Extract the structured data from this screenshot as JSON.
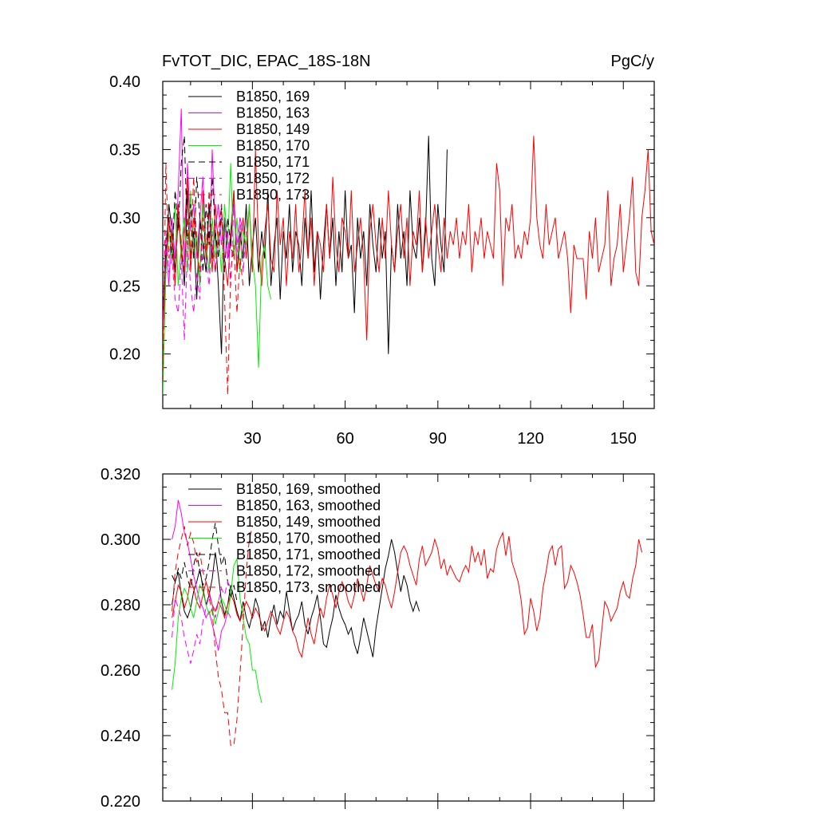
{
  "chart_data": [
    {
      "type": "line",
      "title": "FvTOT_DIC, EPAC_18S-18N",
      "units": "PgC/y",
      "xlim": [
        1,
        160
      ],
      "ylim": [
        0.16,
        0.4
      ],
      "xticks": [
        30,
        60,
        90,
        120,
        150
      ],
      "xtick_labels": [
        "30",
        "60",
        "90",
        "120",
        "150"
      ],
      "yticks": [
        0.2,
        0.25,
        0.3,
        0.35,
        0.4
      ],
      "ytick_labels": [
        "0.20",
        "0.25",
        "0.30",
        "0.35",
        "0.40"
      ],
      "legend_position": "top-left",
      "series": [
        {
          "name": "B1850, 169",
          "color": "#000000",
          "dash": "solid",
          "start": 1,
          "values": [
            0.22,
            0.27,
            0.31,
            0.29,
            0.26,
            0.3,
            0.28,
            0.25,
            0.32,
            0.27,
            0.29,
            0.24,
            0.3,
            0.28,
            0.26,
            0.31,
            0.27,
            0.29,
            0.25,
            0.2,
            0.3,
            0.27,
            0.28,
            0.32,
            0.26,
            0.29,
            0.27,
            0.31,
            0.25,
            0.28,
            0.3,
            0.26,
            0.29,
            0.27,
            0.32,
            0.25,
            0.28,
            0.3,
            0.24,
            0.29,
            0.27,
            0.31,
            0.26,
            0.29,
            0.28,
            0.25,
            0.3,
            0.27,
            0.32,
            0.26,
            0.29,
            0.24,
            0.28,
            0.31,
            0.27,
            0.3,
            0.25,
            0.29,
            0.26,
            0.32,
            0.27,
            0.28,
            0.23,
            0.3,
            0.27,
            0.29,
            0.25,
            0.31,
            0.28,
            0.26,
            0.3,
            0.27,
            0.29,
            0.2,
            0.28,
            0.26,
            0.31,
            0.27,
            0.29,
            0.25,
            0.32,
            0.28,
            0.27,
            0.3,
            0.26,
            0.29,
            0.36,
            0.27,
            0.25,
            0.31,
            0.28,
            0.26,
            0.35
          ]
        },
        {
          "name": "B1850, 163",
          "color": "#ff00ff",
          "dash": "solid",
          "start": 1,
          "values": [
            0.22,
            0.28,
            0.25,
            0.3,
            0.27,
            0.32,
            0.38,
            0.26,
            0.34,
            0.29,
            0.31,
            0.27,
            0.3,
            0.33,
            0.28,
            0.26,
            0.35,
            0.29,
            0.31,
            0.28,
            0.3,
            0.27,
            0.29,
            0.31,
            0.28,
            0.3,
            0.29
          ]
        },
        {
          "name": "B1850, 149",
          "color": "#ff0000",
          "dash": "solid",
          "start": 1,
          "values": [
            0.21,
            0.26,
            0.3,
            0.28,
            0.25,
            0.31,
            0.27,
            0.29,
            0.33,
            0.26,
            0.3,
            0.28,
            0.25,
            0.32,
            0.27,
            0.29,
            0.26,
            0.31,
            0.28,
            0.3,
            0.27,
            0.25,
            0.29,
            0.32,
            0.26,
            0.28,
            0.3,
            0.27,
            0.31,
            0.26,
            0.35,
            0.28,
            0.25,
            0.29,
            0.31,
            0.27,
            0.26,
            0.32,
            0.28,
            0.3,
            0.25,
            0.29,
            0.27,
            0.31,
            0.26,
            0.28,
            0.32,
            0.27,
            0.3,
            0.25,
            0.29,
            0.28,
            0.26,
            0.31,
            0.27,
            0.33,
            0.28,
            0.26,
            0.3,
            0.29,
            0.27,
            0.32,
            0.26,
            0.28,
            0.3,
            0.27,
            0.21,
            0.29,
            0.31,
            0.28,
            0.26,
            0.3,
            0.27,
            0.32,
            0.28,
            0.26,
            0.29,
            0.31,
            0.27,
            0.3,
            0.25,
            0.29,
            0.28,
            0.32,
            0.26,
            0.3,
            0.27,
            0.29,
            0.31,
            0.28,
            0.26,
            0.3,
            0.27,
            0.29,
            0.28,
            0.3,
            0.27,
            0.29,
            0.28,
            0.31,
            0.26,
            0.29,
            0.28,
            0.3,
            0.27,
            0.29,
            0.28,
            0.27,
            0.34,
            0.32,
            0.25,
            0.3,
            0.29,
            0.31,
            0.27,
            0.28,
            0.27,
            0.29,
            0.28,
            0.3,
            0.36,
            0.3,
            0.28,
            0.27,
            0.31,
            0.28,
            0.29,
            0.3,
            0.27,
            0.28,
            0.29,
            0.27,
            0.23,
            0.28,
            0.27,
            0.27,
            0.27,
            0.24,
            0.29,
            0.27,
            0.3,
            0.26,
            0.27,
            0.28,
            0.32,
            0.25,
            0.27,
            0.28,
            0.31,
            0.26,
            0.28,
            0.3,
            0.33,
            0.26,
            0.25,
            0.3,
            0.32,
            0.35,
            0.29,
            0.28
          ]
        },
        {
          "name": "B1850, 170",
          "color": "#00ee00",
          "dash": "solid",
          "start": 1,
          "values": [
            0.17,
            0.26,
            0.29,
            0.27,
            0.31,
            0.25,
            0.28,
            0.3,
            0.26,
            0.32,
            0.27,
            0.29,
            0.25,
            0.31,
            0.28,
            0.26,
            0.3,
            0.27,
            0.29,
            0.26,
            0.31,
            0.28,
            0.34,
            0.27,
            0.3,
            0.26,
            0.29,
            0.28,
            0.31,
            0.27,
            0.25,
            0.19,
            0.27,
            0.28,
            0.25,
            0.24
          ]
        },
        {
          "name": "B1850, 171",
          "color": "#000000",
          "dash": "dashed",
          "start": 1,
          "values": [
            0.23,
            0.28,
            0.3,
            0.27,
            0.32,
            0.29,
            0.34,
            0.36,
            0.28,
            0.31,
            0.27,
            0.33,
            0.3,
            0.26,
            0.31,
            0.28,
            0.33,
            0.29,
            0.27,
            0.31,
            0.26,
            0.3,
            0.28,
            0.27
          ]
        },
        {
          "name": "B1850, 172",
          "color": "#ff00ff",
          "dash": "dashed",
          "start": 1,
          "values": [
            0.22,
            0.29,
            0.26,
            0.27,
            0.24,
            0.23,
            0.27,
            0.21,
            0.28,
            0.25,
            0.23,
            0.26,
            0.24,
            0.3,
            0.27,
            0.25,
            0.29,
            0.26,
            0.28,
            0.3,
            0.27,
            0.29,
            0.25,
            0.31,
            0.27,
            0.3,
            0.26,
            0.29
          ]
        },
        {
          "name": "B1850, 173",
          "color": "#ff0000",
          "dash": "dashed",
          "start": 1,
          "values": [
            0.18,
            0.34,
            0.27,
            0.29,
            0.25,
            0.31,
            0.28,
            0.26,
            0.3,
            0.27,
            0.33,
            0.28,
            0.26,
            0.3,
            0.27,
            0.32,
            0.28,
            0.26,
            0.29,
            0.31,
            0.24,
            0.17,
            0.26,
            0.28,
            0.23,
            0.27,
            0.25
          ]
        }
      ]
    },
    {
      "type": "line",
      "title": "",
      "xlim": [
        1,
        160
      ],
      "ylim": [
        0.22,
        0.32
      ],
      "xticks": [
        30,
        60,
        90,
        120,
        150
      ],
      "xtick_labels": [],
      "yticks": [
        0.22,
        0.24,
        0.26,
        0.28,
        0.3,
        0.32
      ],
      "ytick_labels": [
        "0.220",
        "0.240",
        "0.260",
        "0.280",
        "0.300",
        "0.320"
      ],
      "legend_position": "top-left",
      "series": [
        {
          "name": "B1850, 169, smoothed",
          "color": "#000000",
          "dash": "solid",
          "start": 4,
          "values": [
            0.289,
            0.287,
            0.29,
            0.283,
            0.278,
            0.276,
            0.279,
            0.284,
            0.287,
            0.291,
            0.285,
            0.28,
            0.283,
            0.288,
            0.296,
            0.289,
            0.281,
            0.277,
            0.28,
            0.286,
            0.282,
            0.278,
            0.275,
            0.281,
            0.276,
            0.273,
            0.277,
            0.282,
            0.279,
            0.272,
            0.275,
            0.27,
            0.276,
            0.28,
            0.274,
            0.278,
            0.276,
            0.284,
            0.278,
            0.272,
            0.275,
            0.277,
            0.281,
            0.274,
            0.271,
            0.276,
            0.279,
            0.283,
            0.276,
            0.268,
            0.267,
            0.272,
            0.276,
            0.283,
            0.279,
            0.276,
            0.274,
            0.271,
            0.273,
            0.268,
            0.265,
            0.27,
            0.276,
            0.272,
            0.268,
            0.264,
            0.273,
            0.279,
            0.285,
            0.291,
            0.295,
            0.3,
            0.296,
            0.29,
            0.284,
            0.289,
            0.286,
            0.281,
            0.278,
            0.281,
            0.278
          ]
        },
        {
          "name": "B1850, 163, smoothed",
          "color": "#ff00ff",
          "dash": "solid",
          "start": 4,
          "values": [
            0.3,
            0.304,
            0.312,
            0.308,
            0.302,
            0.299,
            0.294,
            0.289,
            0.285,
            0.281,
            0.279,
            0.276,
            0.278,
            0.274,
            0.27,
            0.266,
            0.272,
            0.274,
            0.278,
            0.276
          ]
        },
        {
          "name": "B1850, 149, smoothed",
          "color": "#ff0000",
          "dash": "solid",
          "start": 4,
          "values": [
            0.276,
            0.281,
            0.286,
            0.284,
            0.279,
            0.282,
            0.288,
            0.285,
            0.281,
            0.279,
            0.283,
            0.287,
            0.284,
            0.28,
            0.278,
            0.281,
            0.279,
            0.276,
            0.28,
            0.283,
            0.281,
            0.277,
            0.275,
            0.278,
            0.281,
            0.279,
            0.276,
            0.279,
            0.277,
            0.274,
            0.272,
            0.275,
            0.278,
            0.276,
            0.273,
            0.271,
            0.275,
            0.278,
            0.276,
            0.272,
            0.27,
            0.266,
            0.264,
            0.27,
            0.276,
            0.271,
            0.268,
            0.274,
            0.279,
            0.276,
            0.282,
            0.286,
            0.283,
            0.279,
            0.284,
            0.287,
            0.285,
            0.281,
            0.279,
            0.283,
            0.288,
            0.285,
            0.281,
            0.286,
            0.292,
            0.289,
            0.286,
            0.284,
            0.288,
            0.286,
            0.282,
            0.279,
            0.284,
            0.29,
            0.296,
            0.298,
            0.296,
            0.292,
            0.289,
            0.286,
            0.294,
            0.298,
            0.292,
            0.294,
            0.296,
            0.3,
            0.297,
            0.291,
            0.294,
            0.289,
            0.292,
            0.29,
            0.288,
            0.287,
            0.29,
            0.292,
            0.29,
            0.298,
            0.293,
            0.296,
            0.292,
            0.297,
            0.288,
            0.291,
            0.29,
            0.297,
            0.3,
            0.302,
            0.295,
            0.301,
            0.293,
            0.29,
            0.287,
            0.281,
            0.271,
            0.273,
            0.282,
            0.278,
            0.272,
            0.276,
            0.285,
            0.29,
            0.296,
            0.298,
            0.292,
            0.297,
            0.298,
            0.285,
            0.287,
            0.292,
            0.29,
            0.287,
            0.283,
            0.277,
            0.27,
            0.27,
            0.274,
            0.261,
            0.263,
            0.272,
            0.281,
            0.279,
            0.275,
            0.277,
            0.279,
            0.284,
            0.287,
            0.283,
            0.282,
            0.288,
            0.292,
            0.3,
            0.296
          ]
        },
        {
          "name": "B1850, 170, smoothed",
          "color": "#00ee00",
          "dash": "solid",
          "start": 4,
          "values": [
            0.254,
            0.262,
            0.276,
            0.282,
            0.285,
            0.283,
            0.279,
            0.276,
            0.281,
            0.286,
            0.284,
            0.28,
            0.277,
            0.279,
            0.274,
            0.278,
            0.282,
            0.28,
            0.277,
            0.283,
            0.292,
            0.294,
            0.282,
            0.276,
            0.27,
            0.268,
            0.26,
            0.26,
            0.254,
            0.25
          ]
        },
        {
          "name": "B1850, 171, smoothed",
          "color": "#000000",
          "dash": "dashed",
          "start": 4,
          "values": [
            0.28,
            0.287,
            0.291,
            0.288,
            0.293,
            0.288,
            0.285,
            0.292,
            0.296,
            0.29,
            0.286,
            0.288,
            0.293,
            0.3,
            0.305,
            0.298,
            0.292,
            0.295,
            0.287,
            0.282,
            0.286,
            0.281
          ]
        },
        {
          "name": "B1850, 172, smoothed",
          "color": "#ff00ff",
          "dash": "dashed",
          "start": 4,
          "values": [
            0.27,
            0.282,
            0.279,
            0.276,
            0.27,
            0.266,
            0.262,
            0.266,
            0.271,
            0.268,
            0.275,
            0.279,
            0.283,
            0.28,
            0.276,
            0.281,
            0.285,
            0.283,
            0.287,
            0.285
          ]
        },
        {
          "name": "B1850, 173, smoothed",
          "color": "#ff0000",
          "dash": "dashed",
          "start": 4,
          "values": [
            0.278,
            0.29,
            0.296,
            0.3,
            0.304,
            0.298,
            0.302,
            0.299,
            0.293,
            0.296,
            0.29,
            0.287,
            0.282,
            0.278,
            0.266,
            0.258,
            0.254,
            0.247,
            0.247,
            0.237,
            0.237,
            0.245,
            0.259,
            0.274,
            0.29,
            0.3,
            0.304
          ]
        }
      ]
    }
  ]
}
